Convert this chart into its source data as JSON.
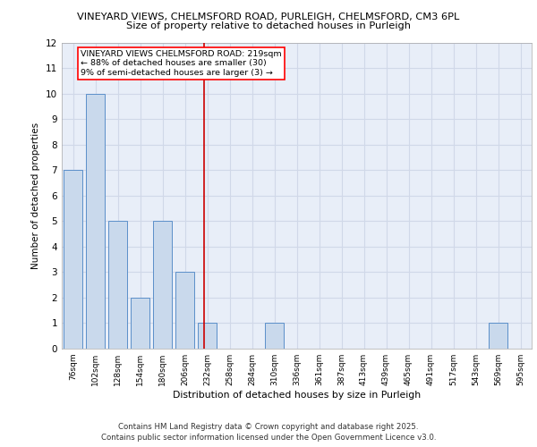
{
  "title1": "VINEYARD VIEWS, CHELMSFORD ROAD, PURLEIGH, CHELMSFORD, CM3 6PL",
  "title2": "Size of property relative to detached houses in Purleigh",
  "xlabel": "Distribution of detached houses by size in Purleigh",
  "ylabel": "Number of detached properties",
  "footer1": "Contains HM Land Registry data © Crown copyright and database right 2025.",
  "footer2": "Contains public sector information licensed under the Open Government Licence v3.0.",
  "annotation_title": "VINEYARD VIEWS CHELMSFORD ROAD: 219sqm",
  "annotation_line1": "← 88% of detached houses are smaller (30)",
  "annotation_line2": "9% of semi-detached houses are larger (3) →",
  "bins": [
    "76sqm",
    "102sqm",
    "128sqm",
    "154sqm",
    "180sqm",
    "206sqm",
    "232sqm",
    "258sqm",
    "284sqm",
    "310sqm",
    "336sqm",
    "361sqm",
    "387sqm",
    "413sqm",
    "439sqm",
    "465sqm",
    "491sqm",
    "517sqm",
    "543sqm",
    "569sqm",
    "595sqm"
  ],
  "counts": [
    7,
    10,
    5,
    2,
    5,
    3,
    1,
    0,
    0,
    1,
    0,
    0,
    0,
    0,
    0,
    0,
    0,
    0,
    0,
    1,
    0
  ],
  "bar_color": "#c9d9ec",
  "bar_edge_color": "#5b8fc9",
  "red_line_bin_index": 5.85,
  "ylim": [
    0,
    12
  ],
  "yticks": [
    0,
    1,
    2,
    3,
    4,
    5,
    6,
    7,
    8,
    9,
    10,
    11,
    12
  ],
  "grid_color": "#d0d8e8",
  "bg_color": "#e8eef8"
}
